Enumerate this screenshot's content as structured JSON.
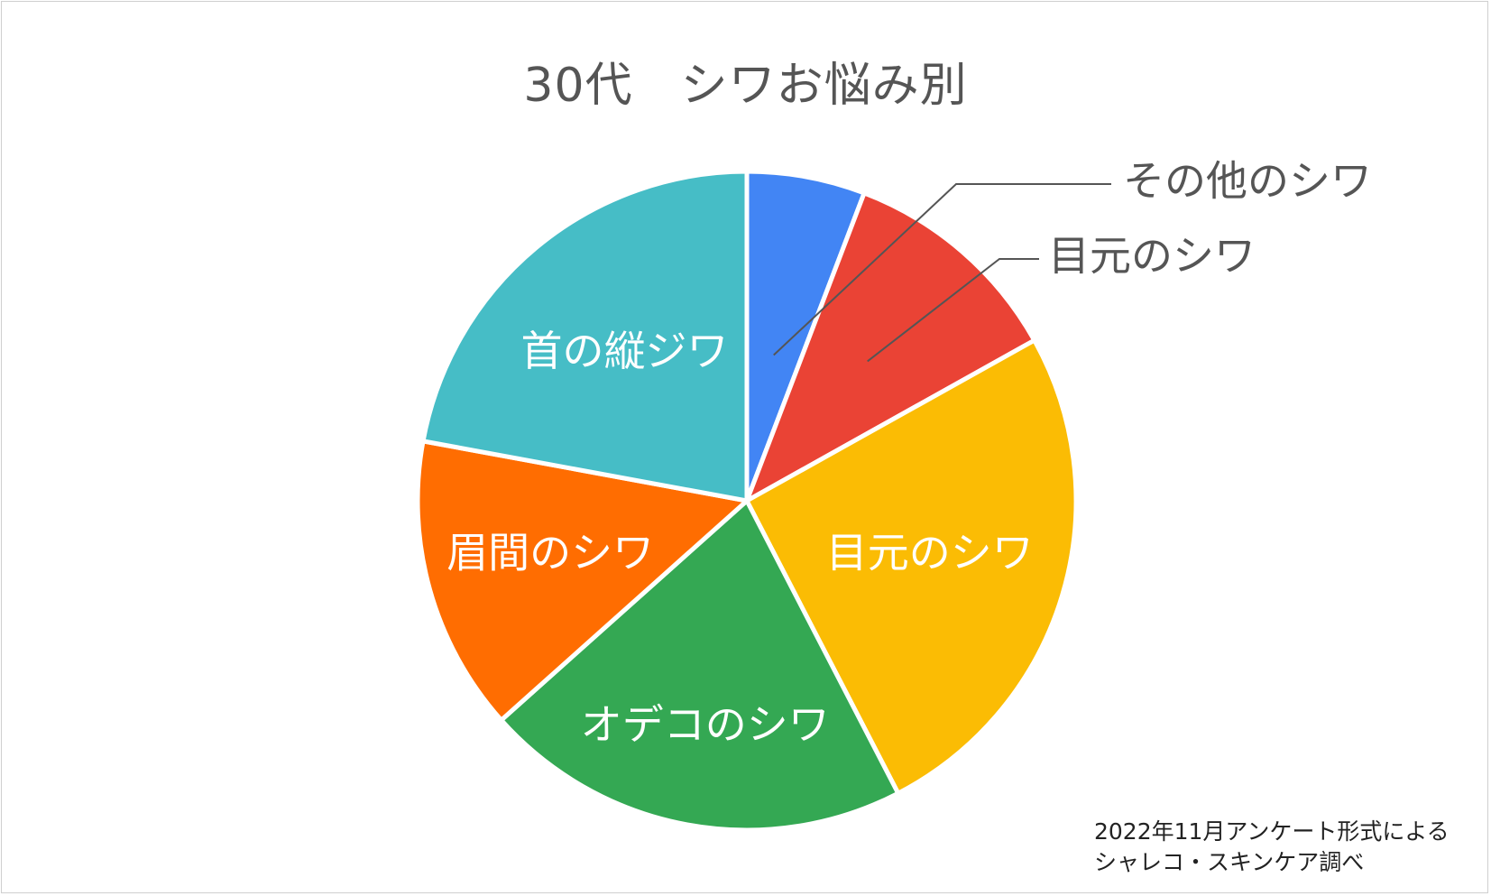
{
  "chart_data": {
    "type": "pie",
    "title": "30代　シワお悩み別",
    "start_angle_deg": 0,
    "direction": "clockwise",
    "slices": [
      {
        "label": "その他のシワ",
        "value": 5.8,
        "color": "#4285F4",
        "label_position": "outside"
      },
      {
        "label": "目元のシワ",
        "value": 11.1,
        "color": "#EA4335",
        "label_position": "outside"
      },
      {
        "label": "目元のシワ",
        "value": 25.5,
        "color": "#FBBC04",
        "label_position": "inside"
      },
      {
        "label": "オデコのシワ",
        "value": 21.0,
        "color": "#34A853",
        "label_position": "inside"
      },
      {
        "label": "眉間のシワ",
        "value": 14.5,
        "color": "#FF6D01",
        "label_position": "inside"
      },
      {
        "label": "首の縦ジワ",
        "value": 22.1,
        "color": "#46BDC6",
        "label_position": "inside"
      }
    ]
  },
  "source_note": {
    "line1": "2022年11月アンケート形式による",
    "line2": "シャレコ・スキンケア調べ"
  }
}
